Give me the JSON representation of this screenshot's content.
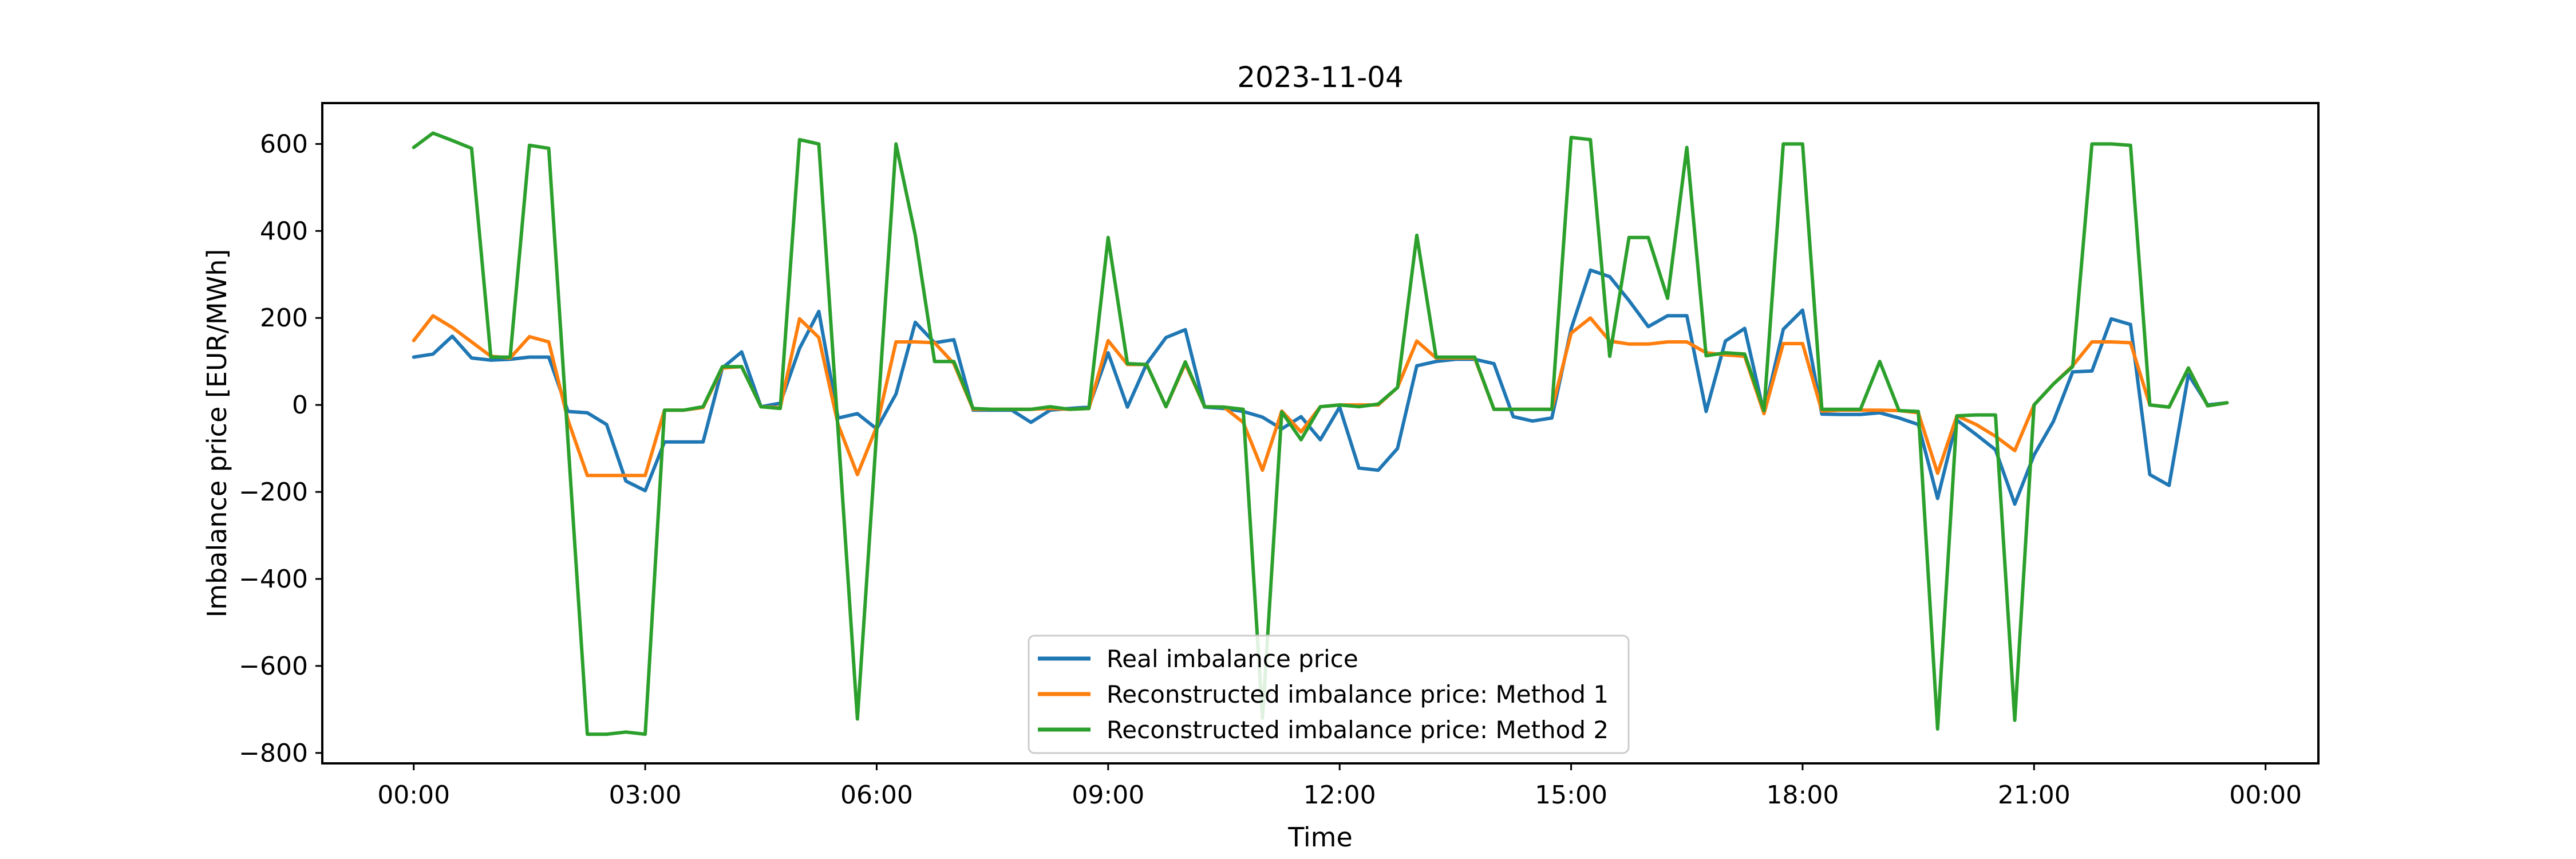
{
  "chart_data": {
    "type": "line",
    "title": "2023-11-04",
    "xlabel": "Time",
    "ylabel": "Imbalance price [EUR/MWh]",
    "grid": false,
    "background": "#ffffff",
    "axis_color": "#000000",
    "legend_position": "lower-center-inside",
    "legend_border_color": "#cccccc",
    "y_ticks": [
      600,
      400,
      200,
      0,
      -200,
      -400,
      -600,
      -800
    ],
    "y_tick_labels": [
      "600",
      "400",
      "200",
      "0",
      "−200",
      "−400",
      "−600",
      "−800"
    ],
    "ylim": [
      -824,
      694
    ],
    "x_tick_labels": [
      "00:00",
      "03:00",
      "06:00",
      "09:00",
      "12:00",
      "15:00",
      "18:00",
      "21:00",
      "00:00"
    ],
    "x_tick_minutes": [
      0,
      180,
      360,
      540,
      720,
      900,
      1080,
      1260,
      1440
    ],
    "xlim_minutes": [
      -71.1,
      1481.1
    ],
    "x_step_minutes": 15,
    "x_times": [
      "00:00",
      "00:15",
      "00:30",
      "00:45",
      "01:00",
      "01:15",
      "01:30",
      "01:45",
      "02:00",
      "02:15",
      "02:30",
      "02:45",
      "03:00",
      "03:15",
      "03:30",
      "03:45",
      "04:00",
      "04:15",
      "04:30",
      "04:45",
      "05:00",
      "05:15",
      "05:30",
      "05:45",
      "06:00",
      "06:15",
      "06:30",
      "06:45",
      "07:00",
      "07:15",
      "07:30",
      "07:45",
      "08:00",
      "08:15",
      "08:30",
      "08:45",
      "09:00",
      "09:15",
      "09:30",
      "09:45",
      "10:00",
      "10:15",
      "10:30",
      "10:45",
      "11:00",
      "11:15",
      "11:30",
      "11:45",
      "12:00",
      "12:15",
      "12:30",
      "12:45",
      "13:00",
      "13:15",
      "13:30",
      "13:45",
      "14:00",
      "14:15",
      "14:30",
      "14:45",
      "15:00",
      "15:15",
      "15:30",
      "15:45",
      "16:00",
      "16:15",
      "16:30",
      "16:45",
      "17:00",
      "17:15",
      "17:30",
      "17:45",
      "18:00",
      "18:15",
      "18:30",
      "18:45",
      "19:00",
      "19:15",
      "19:30",
      "19:45",
      "20:00",
      "20:15",
      "20:30",
      "20:45",
      "21:00",
      "21:15",
      "21:30",
      "21:45",
      "22:00",
      "22:15",
      "22:30",
      "22:45",
      "23:00",
      "23:15",
      "23:30"
    ],
    "series": [
      {
        "name": "Real imbalance price",
        "color": "#1f77b4",
        "values": [
          110,
          117,
          158,
          108,
          103,
          105,
          110,
          110,
          -15,
          -18,
          -45,
          -175,
          -197,
          -85,
          -85,
          -85,
          85,
          122,
          -4,
          4,
          130,
          215,
          -30,
          -20,
          -55,
          25,
          190,
          143,
          150,
          -12,
          -12,
          -12,
          -40,
          -12,
          -8,
          -5,
          120,
          -5,
          95,
          155,
          173,
          -5,
          -8,
          -15,
          -28,
          -55,
          -27,
          -80,
          -5,
          -145,
          -150,
          -100,
          90,
          100,
          105,
          105,
          95,
          -27,
          -37,
          -30,
          175,
          310,
          295,
          240,
          180,
          205,
          205,
          -15,
          147,
          176,
          -19,
          174,
          218,
          -21,
          -22,
          -22,
          -18,
          -30,
          -45,
          -215,
          -35,
          -68,
          -103,
          -228,
          -115,
          -38,
          76,
          78,
          198,
          185,
          -160,
          -185,
          70,
          0,
          5
        ]
      },
      {
        "name": "Reconstructed imbalance price: Method 1",
        "color": "#ff7f0e",
        "values": [
          148,
          205,
          178,
          145,
          112,
          108,
          157,
          145,
          -35,
          -162,
          -162,
          -162,
          -162,
          -12,
          -12,
          -6,
          85,
          88,
          -4,
          -6,
          198,
          155,
          -45,
          -160,
          -50,
          145,
          145,
          143,
          95,
          -10,
          -10,
          -10,
          -10,
          -8,
          -10,
          -8,
          148,
          93,
          93,
          -4,
          95,
          -4,
          -5,
          -40,
          -150,
          -14,
          -62,
          -4,
          0,
          0,
          0,
          40,
          147,
          108,
          108,
          108,
          -10,
          -10,
          -10,
          -10,
          165,
          200,
          147,
          140,
          140,
          145,
          145,
          120,
          115,
          112,
          -20,
          141,
          141,
          -14,
          -12,
          -12,
          -12,
          -13,
          -18,
          -157,
          -25,
          -45,
          -72,
          -105,
          0,
          48,
          90,
          145,
          145,
          143,
          0,
          -5,
          85,
          -2,
          5
        ]
      },
      {
        "name": "Reconstructed imbalance price: Method 2",
        "color": "#2ca02c",
        "values": [
          592,
          625,
          608,
          590,
          110,
          110,
          597,
          590,
          -85,
          -757,
          -757,
          -752,
          -757,
          -12,
          -12,
          -4,
          88,
          88,
          -4,
          -8,
          610,
          600,
          -60,
          -722,
          -60,
          600,
          390,
          100,
          100,
          -8,
          -10,
          -10,
          -10,
          -4,
          -10,
          -8,
          385,
          95,
          93,
          -4,
          99,
          -4,
          -5,
          -10,
          -720,
          -16,
          -80,
          -4,
          0,
          -4,
          2,
          40,
          390,
          110,
          110,
          110,
          -10,
          -10,
          -10,
          -10,
          615,
          610,
          112,
          385,
          385,
          245,
          592,
          113,
          120,
          117,
          -13,
          600,
          600,
          -10,
          -10,
          -10,
          100,
          -13,
          -15,
          -745,
          -25,
          -23,
          -23,
          -725,
          0,
          48,
          88,
          600,
          600,
          597,
          0,
          -5,
          85,
          -2,
          5
        ]
      }
    ]
  }
}
